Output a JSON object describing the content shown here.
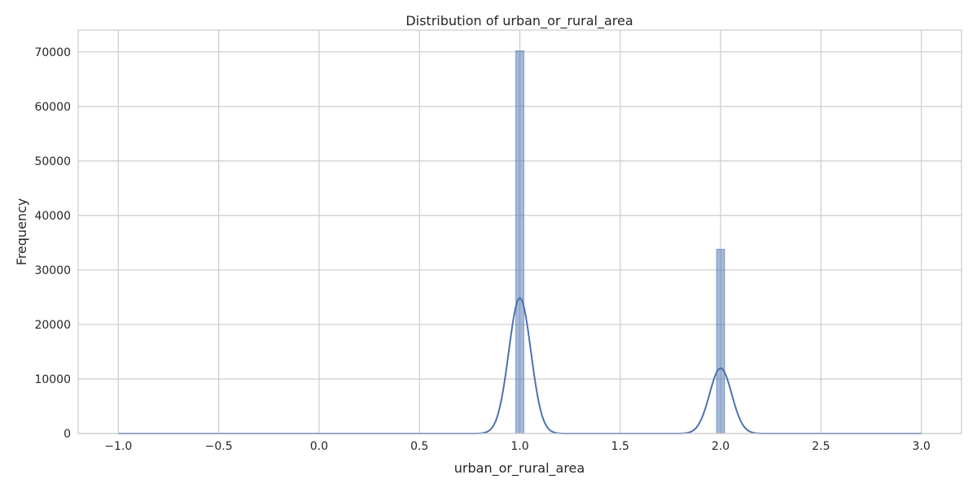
{
  "chart_data": {
    "type": "bar",
    "title": "Distribution of urban_or_rural_area",
    "xlabel": "urban_or_rural_area",
    "ylabel": "Frequency",
    "xlim": [
      -1.2,
      3.2
    ],
    "ylim": [
      0,
      74000
    ],
    "grid": true,
    "xticks": [
      -1.0,
      -0.5,
      0.0,
      0.5,
      1.0,
      1.5,
      2.0,
      2.5,
      3.0
    ],
    "xtick_labels": [
      "−1.0",
      "−0.5",
      "0.0",
      "0.5",
      "1.0",
      "1.5",
      "2.0",
      "2.5",
      "3.0"
    ],
    "yticks": [
      0,
      10000,
      20000,
      30000,
      40000,
      50000,
      60000,
      70000
    ],
    "ytick_labels": [
      "0",
      "10000",
      "20000",
      "30000",
      "40000",
      "50000",
      "60000",
      "70000"
    ],
    "bins": [
      {
        "x0": 0.98,
        "x1": 1.02,
        "count": 70200
      },
      {
        "x0": 1.98,
        "x1": 2.02,
        "count": 33800
      }
    ],
    "kde_peaks": [
      {
        "center": 1.0,
        "height": 24900,
        "sigma": 0.055
      },
      {
        "center": 2.0,
        "height": 12000,
        "sigma": 0.055
      }
    ],
    "kde_range": [
      -1.0,
      3.0
    ],
    "colors": {
      "bar": "#4c72b0",
      "line": "#4c72b0",
      "grid": "#cccccc"
    }
  }
}
